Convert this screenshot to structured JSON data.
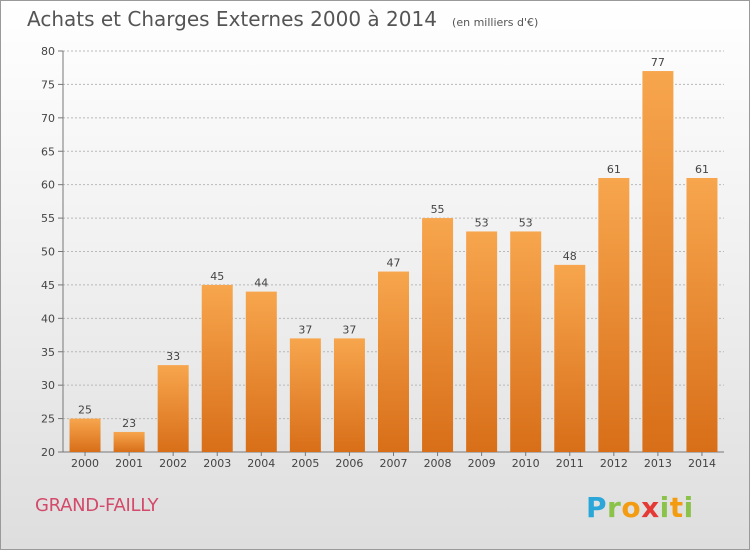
{
  "title": "Achats et Charges Externes 2000 à 2014",
  "subtitle": "(en milliers d'€)",
  "place": "GRAND-FAILLY",
  "logo": {
    "text": "Proxiti",
    "letters": [
      "P",
      "r",
      "o",
      "x",
      "i",
      "t",
      "i"
    ],
    "colors": [
      "#2aa7d8",
      "#8bc34a",
      "#f39c12",
      "#e53935",
      "#8bc34a",
      "#f39c12",
      "#8bc34a"
    ]
  },
  "colors": {
    "bar_top": "#f7a64e",
    "bar_bottom": "#d86e18",
    "place": "#d44a6a"
  },
  "chart_data": {
    "type": "bar",
    "categories": [
      "2000",
      "2001",
      "2002",
      "2003",
      "2004",
      "2005",
      "2006",
      "2007",
      "2008",
      "2009",
      "2010",
      "2011",
      "2012",
      "2013",
      "2014"
    ],
    "values": [
      25,
      23,
      33,
      45,
      44,
      37,
      37,
      47,
      55,
      53,
      53,
      48,
      61,
      77,
      61
    ],
    "title": "Achats et Charges Externes 2000 à 2014",
    "ylim": [
      20,
      80
    ],
    "yticks": [
      20,
      25,
      30,
      35,
      40,
      45,
      50,
      55,
      60,
      65,
      70,
      75,
      80
    ],
    "grid": true,
    "data_labels": true
  }
}
